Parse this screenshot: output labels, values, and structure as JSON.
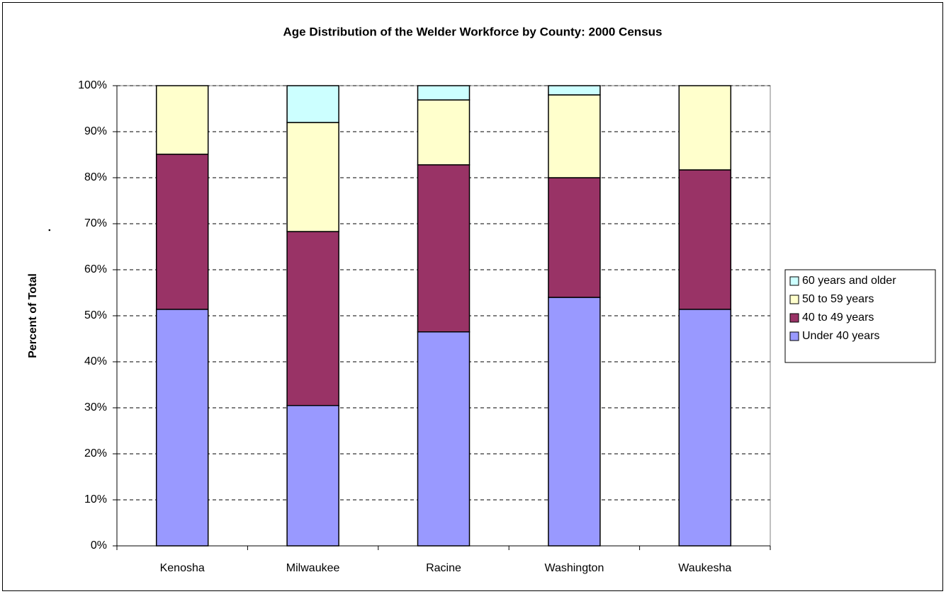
{
  "chart_data": {
    "type": "stacked_bar",
    "title": "Age Distribution of the Welder Workforce by County: 2000 Census",
    "y_label": "Percent of Total",
    "annotation": ".",
    "categories": [
      "Kenosha",
      "Milwaukee",
      "Racine",
      "Washington",
      "Waukesha"
    ],
    "series": [
      {
        "name": "Under 40 years",
        "color": "#9999ff",
        "values": [
          51.4,
          30.5,
          46.5,
          54.0,
          51.4
        ]
      },
      {
        "name": "40 to 49 years",
        "color": "#993366",
        "values": [
          33.7,
          37.8,
          36.3,
          26.0,
          30.3
        ]
      },
      {
        "name": "50 to 59 years",
        "color": "#ffffcc",
        "values": [
          14.9,
          23.7,
          14.1,
          18.0,
          18.3
        ]
      },
      {
        "name": "60 years and older",
        "color": "#ccffff",
        "values": [
          0,
          8.0,
          3.1,
          2.0,
          0
        ]
      }
    ],
    "ylim": [
      0,
      100
    ],
    "yticks": [
      {
        "value": 0,
        "label": "0%"
      },
      {
        "value": 10,
        "label": "10%"
      },
      {
        "value": 20,
        "label": "20%"
      },
      {
        "value": 30,
        "label": "30%"
      },
      {
        "value": 40,
        "label": "40%"
      },
      {
        "value": 50,
        "label": "50%"
      },
      {
        "value": 60,
        "label": "60%"
      },
      {
        "value": 70,
        "label": "70%"
      },
      {
        "value": 80,
        "label": "80%"
      },
      {
        "value": 90,
        "label": "90%"
      },
      {
        "value": 100,
        "label": "100%"
      }
    ],
    "grid": true,
    "legend": "right"
  }
}
